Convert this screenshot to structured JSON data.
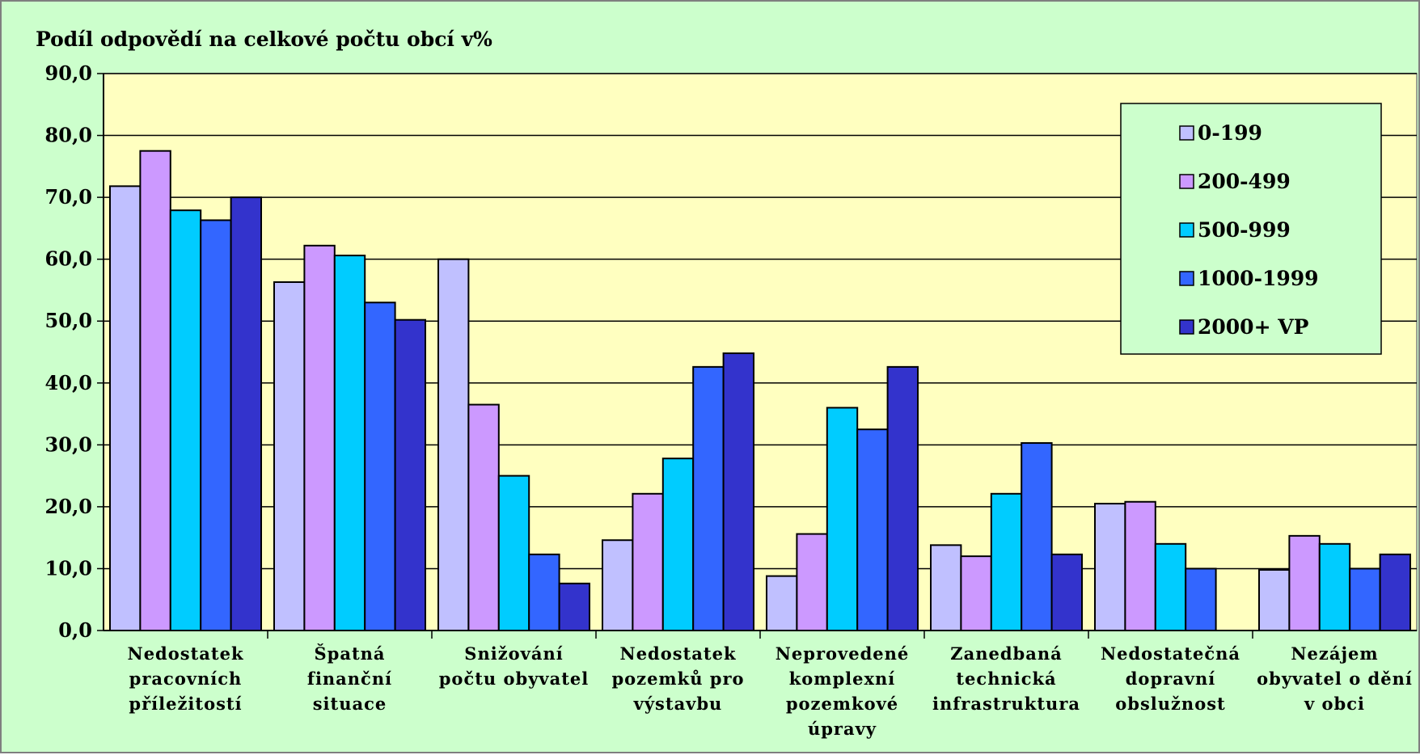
{
  "chart_data": {
    "type": "bar",
    "title": "Podíl odpovědí na celkové počtu obcí v%",
    "xlabel": "",
    "ylabel": "",
    "ylim": [
      0,
      90
    ],
    "yticks": [
      "0,0",
      "10,0",
      "20,0",
      "30,0",
      "40,0",
      "50,0",
      "60,0",
      "70,0",
      "80,0",
      "90,0"
    ],
    "grid": true,
    "legend_position": "top-right",
    "categories": [
      [
        "Nedostatek",
        "pracovních",
        "příležitostí"
      ],
      [
        "Špatná",
        "finanční",
        "situace"
      ],
      [
        "Snižování",
        "počtu obyvatel"
      ],
      [
        "Nedostatek",
        "pozemků pro",
        "výstavbu"
      ],
      [
        "Neprovedené",
        "komplexní",
        "pozemkové",
        "úpravy"
      ],
      [
        "Zanedbaná",
        "technická",
        "infrastruktura"
      ],
      [
        "Nedostatečná",
        "dopravní",
        "obslužnost"
      ],
      [
        "Nezájem",
        "obyvatel o dění",
        "v obci"
      ]
    ],
    "series": [
      {
        "name": "0-199",
        "color": "#c0c0ff",
        "values": [
          71.8,
          56.3,
          60.0,
          14.6,
          8.8,
          13.8,
          20.5,
          9.8
        ]
      },
      {
        "name": "200-499",
        "color": "#cc99ff",
        "values": [
          77.5,
          62.2,
          36.5,
          22.1,
          15.6,
          12.0,
          20.8,
          15.3
        ]
      },
      {
        "name": "500-999",
        "color": "#00ccff",
        "values": [
          67.9,
          60.6,
          25.0,
          27.8,
          36.0,
          22.1,
          14.0,
          14.0
        ]
      },
      {
        "name": "1000-1999",
        "color": "#3366ff",
        "values": [
          66.3,
          53.0,
          12.3,
          42.6,
          32.5,
          30.3,
          10.0,
          10.0
        ]
      },
      {
        "name": "2000+ VP",
        "color": "#3333cc",
        "values": [
          70.0,
          50.2,
          7.6,
          44.8,
          42.6,
          12.3,
          0.0,
          12.3
        ]
      }
    ],
    "colors": {
      "plot_background": "#ffffc0",
      "chart_background": "#ccffcc",
      "legend_background": "#ccffcc"
    }
  }
}
